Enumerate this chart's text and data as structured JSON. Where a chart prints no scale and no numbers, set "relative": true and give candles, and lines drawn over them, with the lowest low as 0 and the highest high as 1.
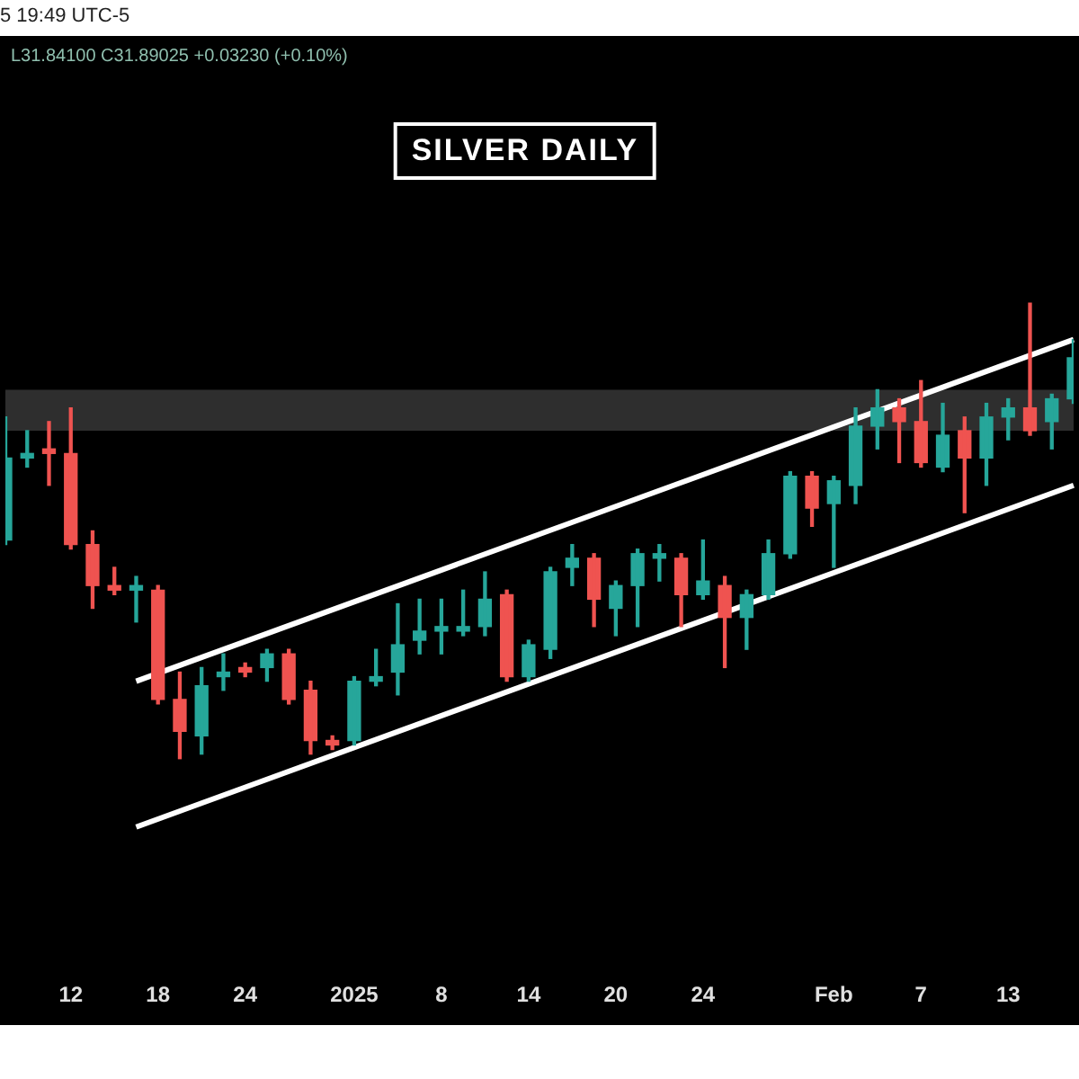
{
  "chart_data": {
    "type": "candlestick",
    "title": "SILVER DAILY",
    "relative": true,
    "tick_labels": "x",
    "annotations": [
      "5 19:49 UTC-5",
      "L31.84100 C31.89025 +0.03230 (+0.10%)"
    ],
    "categories": [
      null,
      null,
      null,
      "12",
      null,
      null,
      null,
      "18",
      null,
      null,
      null,
      "24",
      null,
      null,
      null,
      null,
      "2025",
      null,
      null,
      null,
      "8",
      null,
      null,
      null,
      "14",
      null,
      null,
      null,
      "20",
      null,
      null,
      null,
      "24",
      null,
      null,
      null,
      null,
      null,
      "Feb",
      null,
      null,
      null,
      "7",
      null,
      null,
      null,
      "13",
      null,
      null,
      null
    ],
    "ohlc": [
      [
        0.48,
        0.75,
        0.47,
        0.66
      ],
      [
        0.66,
        0.72,
        0.64,
        0.67
      ],
      [
        0.68,
        0.74,
        0.6,
        0.67
      ],
      [
        0.67,
        0.77,
        0.46,
        0.47
      ],
      [
        0.47,
        0.5,
        0.33,
        0.38
      ],
      [
        0.38,
        0.42,
        0.36,
        0.37
      ],
      [
        0.37,
        0.4,
        0.3,
        0.38
      ],
      [
        0.37,
        0.38,
        0.12,
        0.13
      ],
      [
        0.13,
        0.19,
        0,
        0.06
      ],
      [
        0.05,
        0.2,
        0.01,
        0.16
      ],
      [
        0.18,
        0.23,
        0.15,
        0.19
      ],
      [
        0.2,
        0.21,
        0.18,
        0.19
      ],
      [
        0.2,
        0.24,
        0.17,
        0.23
      ],
      [
        0.23,
        0.24,
        0.12,
        0.13
      ],
      [
        0.15,
        0.17,
        0.01,
        0.04
      ],
      [
        0.04,
        0.05,
        0.02,
        0.03
      ],
      [
        0.04,
        0.18,
        0.03,
        0.17
      ],
      [
        0.17,
        0.24,
        0.16,
        0.18
      ],
      [
        0.19,
        0.34,
        0.14,
        0.25
      ],
      [
        0.26,
        0.35,
        0.23,
        0.28
      ],
      [
        0.28,
        0.35,
        0.23,
        0.29
      ],
      [
        0.28,
        0.37,
        0.27,
        0.29
      ],
      [
        0.29,
        0.41,
        0.27,
        0.35
      ],
      [
        0.36,
        0.37,
        0.17,
        0.18
      ],
      [
        0.18,
        0.26,
        0.17,
        0.25
      ],
      [
        0.24,
        0.42,
        0.22,
        0.41
      ],
      [
        0.42,
        0.47,
        0.38,
        0.44
      ],
      [
        0.44,
        0.45,
        0.29,
        0.35
      ],
      [
        0.33,
        0.39,
        0.27,
        0.38
      ],
      [
        0.38,
        0.46,
        0.29,
        0.45
      ],
      [
        0.44,
        0.47,
        0.39,
        0.45
      ],
      [
        0.44,
        0.45,
        0.29,
        0.36
      ],
      [
        0.36,
        0.48,
        0.35,
        0.39
      ],
      [
        0.38,
        0.4,
        0.2,
        0.31
      ],
      [
        0.31,
        0.37,
        0.24,
        0.36
      ],
      [
        0.36,
        0.48,
        0.35,
        0.45
      ],
      [
        0.45,
        0.63,
        0.44,
        0.62
      ],
      [
        0.62,
        0.63,
        0.51,
        0.55
      ],
      [
        0.56,
        0.62,
        0.42,
        0.61
      ],
      [
        0.6,
        0.77,
        0.56,
        0.73
      ],
      [
        0.73,
        0.81,
        0.68,
        0.77
      ],
      [
        0.77,
        0.79,
        0.65,
        0.74
      ],
      [
        0.74,
        0.83,
        0.64,
        0.65
      ],
      [
        0.64,
        0.78,
        0.63,
        0.71
      ],
      [
        0.72,
        0.75,
        0.54,
        0.66
      ],
      [
        0.66,
        0.78,
        0.6,
        0.75
      ],
      [
        0.75,
        0.79,
        0.7,
        0.77
      ],
      [
        0.77,
        1.0,
        0.71,
        0.72
      ],
      [
        0.74,
        0.8,
        0.68,
        0.79
      ],
      [
        0.79,
        0.92,
        0.78,
        0.88
      ]
    ],
    "colors": [
      "#26a69a",
      "#26a69a",
      "#ef5350",
      "#ef5350",
      "#ef5350",
      "#ef5350",
      "#26a69a",
      "#ef5350",
      "#ef5350",
      "#26a69a",
      "#26a69a",
      "#ef5350",
      "#26a69a",
      "#ef5350",
      "#ef5350",
      "#ef5350",
      "#26a69a",
      "#26a69a",
      "#26a69a",
      "#26a69a",
      "#26a69a",
      "#26a69a",
      "#26a69a",
      "#ef5350",
      "#26a69a",
      "#26a69a",
      "#26a69a",
      "#ef5350",
      "#26a69a",
      "#26a69a",
      "#26a69a",
      "#ef5350",
      "#26a69a",
      "#ef5350",
      "#26a69a",
      "#26a69a",
      "#26a69a",
      "#ef5350",
      "#26a69a",
      "#26a69a",
      "#26a69a",
      "#ef5350",
      "#ef5350",
      "#26a69a",
      "#ef5350",
      "#26a69a",
      "#26a69a",
      "#ef5350",
      "#26a69a",
      "#26a69a"
    ],
    "series": [
      {
        "type": "line",
        "color": "#ffffff",
        "values": [
          null,
          null,
          null,
          null,
          null,
          null,
          0.17,
          null,
          null,
          null,
          null,
          null,
          null,
          null,
          null,
          null,
          null,
          null,
          null,
          null,
          null,
          null,
          null,
          null,
          null,
          null,
          null,
          null,
          null,
          null,
          null,
          null,
          null,
          null,
          null,
          null,
          null,
          null,
          null,
          null,
          null,
          null,
          null,
          null,
          null,
          null,
          null,
          null,
          null,
          0.92
        ]
      },
      {
        "type": "line",
        "color": "#ffffff",
        "values": [
          null,
          null,
          null,
          null,
          null,
          null,
          -0.15,
          null,
          null,
          null,
          null,
          null,
          null,
          null,
          null,
          null,
          null,
          null,
          null,
          null,
          null,
          null,
          null,
          null,
          null,
          null,
          null,
          null,
          null,
          null,
          null,
          null,
          null,
          null,
          null,
          null,
          null,
          null,
          null,
          null,
          null,
          null,
          null,
          null,
          null,
          null,
          null,
          null,
          null,
          0.6
        ]
      }
    ],
    "bands": [
      {
        "axis": "y",
        "from": 0.72,
        "to": 0.81,
        "color": "#2e2e2e"
      }
    ]
  }
}
